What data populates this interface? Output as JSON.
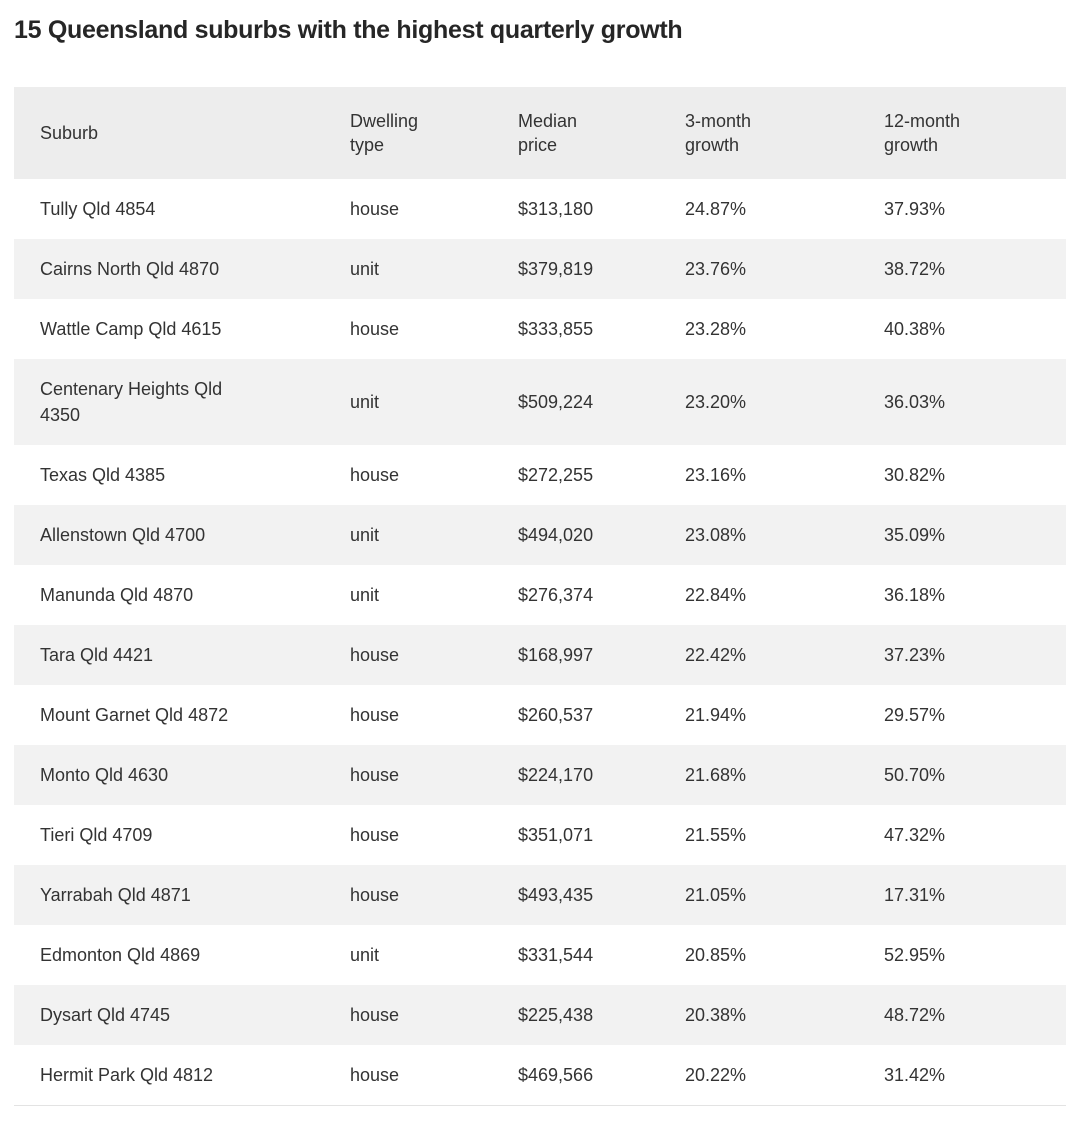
{
  "page_title": "15 Queensland suburbs with the highest quarterly growth",
  "chart_data": {
    "type": "table",
    "title": "15 Queensland suburbs with the highest quarterly growth",
    "columns": [
      "Suburb",
      "Dwelling type",
      "Median price",
      "3-month growth",
      "12-month growth"
    ],
    "rows": [
      [
        "Tully Qld 4854",
        "house",
        "$313,180",
        "24.87%",
        "37.93%"
      ],
      [
        "Cairns North Qld 4870",
        "unit",
        "$379,819",
        "23.76%",
        "38.72%"
      ],
      [
        "Wattle Camp Qld 4615",
        "house",
        "$333,855",
        "23.28%",
        "40.38%"
      ],
      [
        "Centenary Heights Qld 4350",
        "unit",
        "$509,224",
        "23.20%",
        "36.03%"
      ],
      [
        "Texas Qld 4385",
        "house",
        "$272,255",
        "23.16%",
        "30.82%"
      ],
      [
        "Allenstown Qld 4700",
        "unit",
        "$494,020",
        "23.08%",
        "35.09%"
      ],
      [
        "Manunda Qld 4870",
        "unit",
        "$276,374",
        "22.84%",
        "36.18%"
      ],
      [
        "Tara Qld 4421",
        "house",
        "$168,997",
        "22.42%",
        "37.23%"
      ],
      [
        "Mount Garnet Qld 4872",
        "house",
        "$260,537",
        "21.94%",
        "29.57%"
      ],
      [
        "Monto Qld 4630",
        "house",
        "$224,170",
        "21.68%",
        "50.70%"
      ],
      [
        "Tieri Qld 4709",
        "house",
        "$351,071",
        "21.55%",
        "47.32%"
      ],
      [
        "Yarrabah Qld 4871",
        "house",
        "$493,435",
        "21.05%",
        "17.31%"
      ],
      [
        "Edmonton Qld 4869",
        "unit",
        "$331,544",
        "20.85%",
        "52.95%"
      ],
      [
        "Dysart Qld 4745",
        "house",
        "$225,438",
        "20.38%",
        "48.72%"
      ],
      [
        "Hermit Park Qld 4812",
        "house",
        "$469,566",
        "20.22%",
        "31.42%"
      ]
    ],
    "layout": {
      "legend": "none",
      "grid": "off",
      "row_striping": "alternate",
      "header_bg": "#ededed",
      "alt_row_bg": "#f2f2f2",
      "text_color": "#333333",
      "title_color": "#262626"
    }
  }
}
